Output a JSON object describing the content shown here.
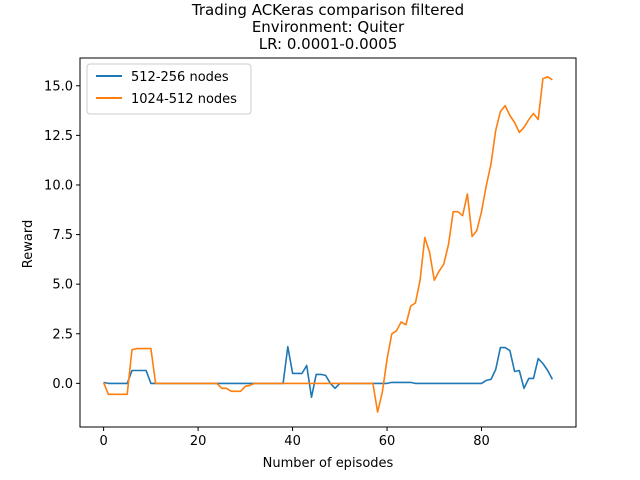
{
  "chart_data": {
    "type": "line",
    "title_lines": [
      "Trading ACKeras comparison filtered",
      "Environment: Quiter",
      "LR: 0.0001-0.0005"
    ],
    "xlabel": "Number of episodes",
    "ylabel": "Reward",
    "xlim": [
      -5,
      100
    ],
    "ylim": [
      -2.2,
      16.4
    ],
    "xticks": [
      0,
      20,
      40,
      60,
      80
    ],
    "yticks": [
      0.0,
      2.5,
      5.0,
      7.5,
      10.0,
      12.5,
      15.0
    ],
    "ytick_labels": [
      "0.0",
      "2.5",
      "5.0",
      "7.5",
      "10.0",
      "12.5",
      "15.0"
    ],
    "grid": false,
    "legend_position": "top-left",
    "series": [
      {
        "name": "512-256 nodes",
        "color": "#1f77b4",
        "points": [
          [
            0,
            0.05
          ],
          [
            1,
            0
          ],
          [
            2,
            0
          ],
          [
            3,
            0
          ],
          [
            4,
            0
          ],
          [
            5,
            0
          ],
          [
            6,
            0.65
          ],
          [
            7,
            0.65
          ],
          [
            8,
            0.65
          ],
          [
            9,
            0.65
          ],
          [
            10,
            0
          ],
          [
            11,
            0
          ],
          [
            12,
            0
          ],
          [
            13,
            0
          ],
          [
            14,
            0
          ],
          [
            15,
            0
          ],
          [
            16,
            0
          ],
          [
            17,
            0
          ],
          [
            18,
            0
          ],
          [
            19,
            0
          ],
          [
            20,
            0
          ],
          [
            21,
            0
          ],
          [
            22,
            0
          ],
          [
            23,
            0
          ],
          [
            24,
            0
          ],
          [
            25,
            0
          ],
          [
            26,
            0
          ],
          [
            27,
            0
          ],
          [
            28,
            0
          ],
          [
            29,
            0
          ],
          [
            30,
            0
          ],
          [
            31,
            0
          ],
          [
            32,
            0
          ],
          [
            33,
            0
          ],
          [
            34,
            0
          ],
          [
            35,
            0
          ],
          [
            36,
            0
          ],
          [
            37,
            0
          ],
          [
            38,
            0
          ],
          [
            39,
            1.85
          ],
          [
            40,
            0.5
          ],
          [
            41,
            0.5
          ],
          [
            42,
            0.5
          ],
          [
            43,
            0.9
          ],
          [
            44,
            -0.7
          ],
          [
            45,
            0.45
          ],
          [
            46,
            0.45
          ],
          [
            47,
            0.4
          ],
          [
            48,
            0
          ],
          [
            49,
            -0.25
          ],
          [
            50,
            0
          ],
          [
            51,
            0
          ],
          [
            52,
            0
          ],
          [
            53,
            0
          ],
          [
            54,
            0
          ],
          [
            55,
            0
          ],
          [
            56,
            0
          ],
          [
            57,
            0
          ],
          [
            58,
            0
          ],
          [
            59,
            0
          ],
          [
            60,
            0
          ],
          [
            61,
            0.05
          ],
          [
            62,
            0.05
          ],
          [
            63,
            0.05
          ],
          [
            64,
            0.05
          ],
          [
            65,
            0.05
          ],
          [
            66,
            0
          ],
          [
            67,
            0
          ],
          [
            68,
            0
          ],
          [
            69,
            0
          ],
          [
            70,
            0
          ],
          [
            71,
            0
          ],
          [
            72,
            0
          ],
          [
            73,
            0
          ],
          [
            74,
            0
          ],
          [
            75,
            0
          ],
          [
            76,
            0
          ],
          [
            77,
            0
          ],
          [
            78,
            0
          ],
          [
            79,
            0
          ],
          [
            80,
            0
          ],
          [
            81,
            0.15
          ],
          [
            82,
            0.2
          ],
          [
            83,
            0.7
          ],
          [
            84,
            1.8
          ],
          [
            85,
            1.8
          ],
          [
            86,
            1.65
          ],
          [
            87,
            0.6
          ],
          [
            88,
            0.65
          ],
          [
            89,
            -0.25
          ],
          [
            90,
            0.25
          ],
          [
            91,
            0.25
          ],
          [
            92,
            1.25
          ],
          [
            93,
            1.0
          ],
          [
            94,
            0.65
          ],
          [
            95,
            0.2
          ]
        ]
      },
      {
        "name": "1024-512 nodes",
        "color": "#ff7f0e",
        "points": [
          [
            0,
            0.05
          ],
          [
            1,
            -0.55
          ],
          [
            2,
            -0.55
          ],
          [
            3,
            -0.55
          ],
          [
            4,
            -0.55
          ],
          [
            5,
            -0.55
          ],
          [
            6,
            1.7
          ],
          [
            7,
            1.75
          ],
          [
            8,
            1.75
          ],
          [
            9,
            1.75
          ],
          [
            10,
            1.75
          ],
          [
            11,
            0
          ],
          [
            12,
            0
          ],
          [
            13,
            0
          ],
          [
            14,
            0
          ],
          [
            15,
            0
          ],
          [
            16,
            0
          ],
          [
            17,
            0
          ],
          [
            18,
            0
          ],
          [
            19,
            0
          ],
          [
            20,
            0
          ],
          [
            21,
            0
          ],
          [
            22,
            0
          ],
          [
            23,
            0
          ],
          [
            24,
            0
          ],
          [
            25,
            -0.25
          ],
          [
            26,
            -0.25
          ],
          [
            27,
            -0.4
          ],
          [
            28,
            -0.4
          ],
          [
            29,
            -0.4
          ],
          [
            30,
            -0.15
          ],
          [
            31,
            -0.1
          ],
          [
            32,
            0
          ],
          [
            33,
            0
          ],
          [
            34,
            0
          ],
          [
            35,
            0
          ],
          [
            36,
            0
          ],
          [
            37,
            0
          ],
          [
            38,
            0
          ],
          [
            39,
            0
          ],
          [
            40,
            0
          ],
          [
            41,
            0
          ],
          [
            42,
            0
          ],
          [
            43,
            0
          ],
          [
            44,
            0
          ],
          [
            45,
            0
          ],
          [
            46,
            0
          ],
          [
            47,
            0
          ],
          [
            48,
            0
          ],
          [
            49,
            0
          ],
          [
            50,
            0
          ],
          [
            51,
            0
          ],
          [
            52,
            0
          ],
          [
            53,
            0
          ],
          [
            54,
            0
          ],
          [
            55,
            0
          ],
          [
            56,
            0
          ],
          [
            57,
            0
          ],
          [
            58,
            -1.45
          ],
          [
            59,
            -0.45
          ],
          [
            60,
            1.2
          ],
          [
            61,
            2.5
          ],
          [
            62,
            2.65
          ],
          [
            63,
            3.1
          ],
          [
            64,
            2.95
          ],
          [
            65,
            3.9
          ],
          [
            66,
            4.05
          ],
          [
            67,
            5.2
          ],
          [
            68,
            7.35
          ],
          [
            69,
            6.6
          ],
          [
            70,
            5.2
          ],
          [
            71,
            5.65
          ],
          [
            72,
            6.0
          ],
          [
            73,
            7.0
          ],
          [
            74,
            8.65
          ],
          [
            75,
            8.65
          ],
          [
            76,
            8.45
          ],
          [
            77,
            9.55
          ],
          [
            78,
            7.4
          ],
          [
            79,
            7.7
          ],
          [
            80,
            8.65
          ],
          [
            81,
            9.95
          ],
          [
            82,
            11.05
          ],
          [
            83,
            12.75
          ],
          [
            84,
            13.7
          ],
          [
            85,
            14.0
          ],
          [
            86,
            13.5
          ],
          [
            87,
            13.15
          ],
          [
            88,
            12.65
          ],
          [
            89,
            12.9
          ],
          [
            90,
            13.3
          ],
          [
            91,
            13.6
          ],
          [
            92,
            13.3
          ],
          [
            93,
            15.35
          ],
          [
            94,
            15.45
          ],
          [
            95,
            15.3
          ]
        ]
      }
    ]
  }
}
